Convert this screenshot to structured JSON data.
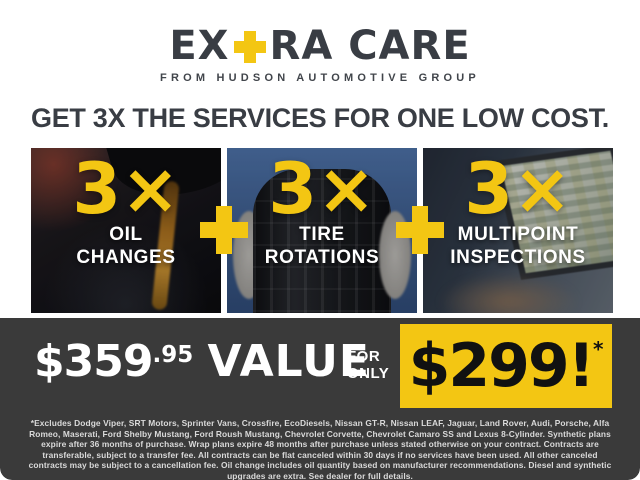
{
  "colors": {
    "accent_yellow": "#F3C613",
    "charcoal_text": "#393D44",
    "footer_background": "#3A3A3A",
    "panel_text": "#FFFFFF"
  },
  "logo": {
    "part1": "EX",
    "part2": "RA CARE",
    "plus_glyph": "+",
    "tagline": "FROM HUDSON AUTOMOTIVE GROUP"
  },
  "headline": "GET 3X THE SERVICES FOR ONE LOW COST.",
  "panels": [
    {
      "multiplier": "3×",
      "label_lines": [
        "OIL",
        "CHANGES"
      ],
      "image": "motor-oil-pour-photo"
    },
    {
      "multiplier": "3×",
      "label_lines": [
        "TIRE",
        "ROTATIONS"
      ],
      "image": "mechanic-holding-tire-photo"
    },
    {
      "multiplier": "3×",
      "label_lines": [
        "MULTIPOINT",
        "INSPECTIONS"
      ],
      "image": "technician-laptop-diagnostics-photo"
    }
  ],
  "plus_separator": "+",
  "pricing": {
    "value_dollars": "$359",
    "value_cents": ".95",
    "value_word": "VALUE",
    "for_line1": "FOR",
    "for_line2": "ONLY",
    "sale_price": "$299!",
    "footnote_marker": "*"
  },
  "disclaimer": "*Excludes Dodge Viper, SRT Motors, Sprinter Vans, Crossfire, EcoDiesels, Nissan GT-R, Nissan LEAF, Jaguar, Land Rover, Audi, Porsche, Alfa Romeo, Maserati, Ford Shelby Mustang, Ford Roush Mustang, Chevrolet Corvette, Chevrolet Camaro SS and Lexus 8-Cylinder. Synthetic plans expire after 36 months of purchase. Wrap plans expire 48 months after purchase unless stated otherwise on your contract. Contracts are transferable, subject to a transfer fee. All contracts can be flat canceled within 30 days if no services have been used. All other canceled contracts may be subject to a cancellation fee. Oil change includes oil quantity based on manufacturer recommendations. Diesel and synthetic upgrades are extra. See dealer for full details."
}
